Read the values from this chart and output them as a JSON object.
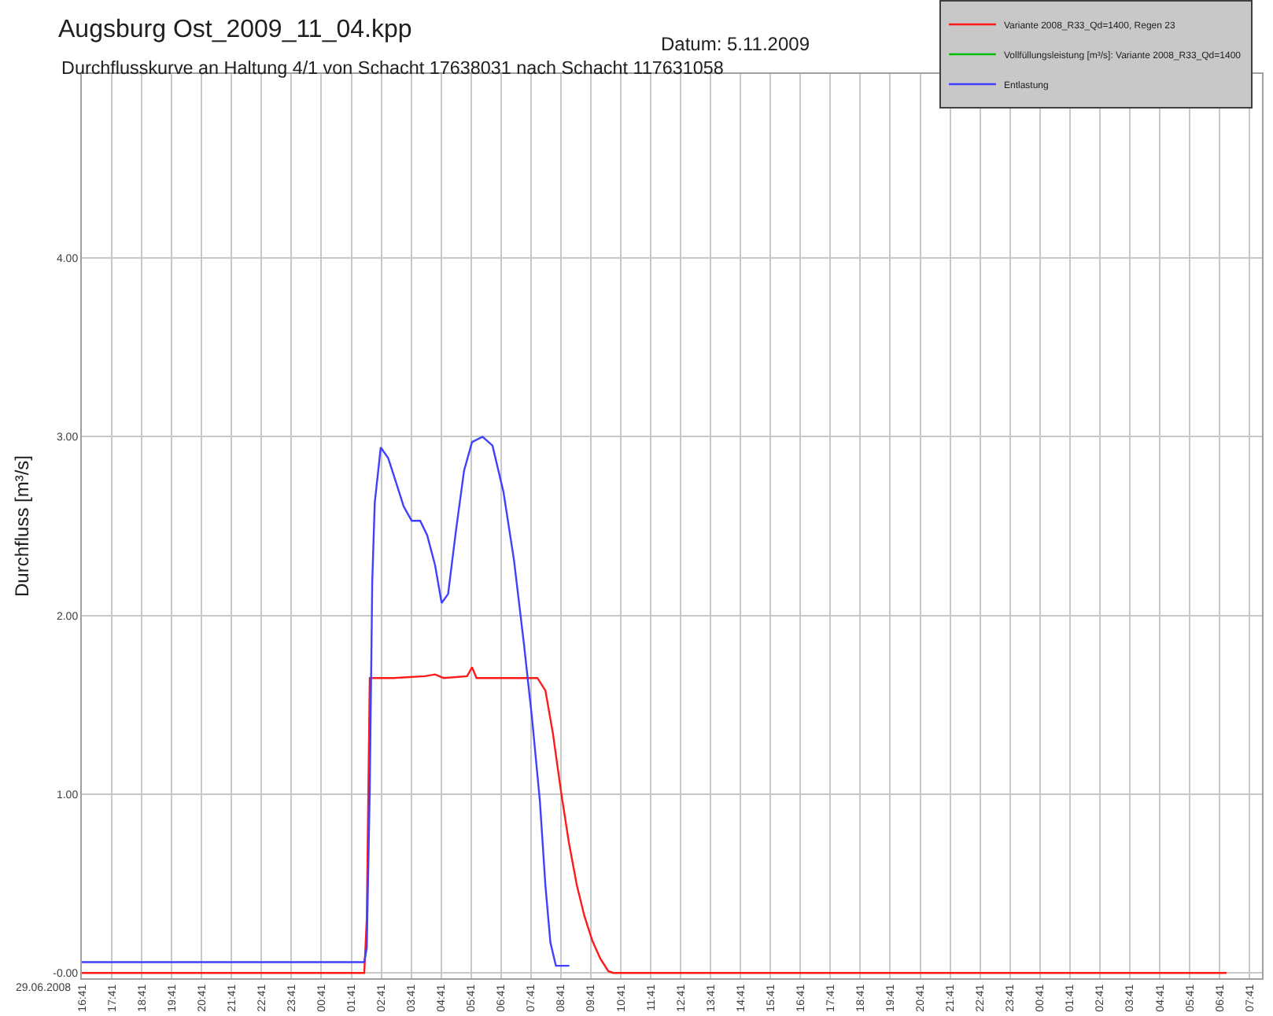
{
  "chart_data": {
    "type": "line",
    "title": "Augsburg Ost_2009_11_04.kpp",
    "subtitle": "Durchflusskurve an Haltung 4/1 von Schacht 17638031 nach Schacht 117631058",
    "ylabel": "Durchfluss [m³/s]",
    "annotations": [
      "Datum: 5.11.2009",
      "29.06.2008"
    ],
    "series": [
      {
        "name": "Variante 2008_R33_Qd=1400, Regen 23",
        "color": "#ff1a1a",
        "x": [
          "2008-06-29T16:41",
          "2008-06-30T02:07",
          "2008-06-30T02:12",
          "2008-06-30T02:18",
          "2008-06-30T03:05",
          "2008-06-30T04:08",
          "2008-06-30T04:29",
          "2008-06-30T04:46",
          "2008-06-30T05:33",
          "2008-06-30T05:43",
          "2008-06-30T05:52",
          "2008-06-30T06:46",
          "2008-06-30T07:54",
          "2008-06-30T08:10",
          "2008-06-30T08:25",
          "2008-06-30T08:41",
          "2008-06-30T08:57",
          "2008-06-30T09:13",
          "2008-06-30T09:28",
          "2008-06-30T09:44",
          "2008-06-30T10:00",
          "2008-06-30T10:16",
          "2008-06-30T10:26",
          "2008-07-01T06:55"
        ],
        "values": [
          0,
          0,
          0.3,
          1.65,
          1.65,
          1.66,
          1.67,
          1.65,
          1.66,
          1.71,
          1.65,
          1.65,
          1.65,
          1.58,
          1.34,
          1.02,
          0.73,
          0.49,
          0.32,
          0.18,
          0.08,
          0.01,
          0,
          0
        ]
      },
      {
        "name": "Vollfüllungsleistung [m³/s]: Variante 2008_R33_Qd=1400",
        "color": "#00c000",
        "values": [
          null
        ]
      },
      {
        "name": "Entlastung",
        "color": "#4040ff",
        "x": [
          "2008-06-29T16:41",
          "2008-06-30T02:07",
          "2008-06-30T02:12",
          "2008-06-30T02:18",
          "2008-06-30T02:23",
          "2008-06-30T02:28",
          "2008-06-30T02:40",
          "2008-06-30T02:55",
          "2008-06-30T03:10",
          "2008-06-30T03:26",
          "2008-06-30T03:42",
          "2008-06-30T03:59",
          "2008-06-30T04:13",
          "2008-06-30T04:29",
          "2008-06-30T04:42",
          "2008-06-30T04:55",
          "2008-06-30T05:11",
          "2008-06-30T05:27",
          "2008-06-30T05:43",
          "2008-06-30T06:04",
          "2008-06-30T06:24",
          "2008-06-30T06:46",
          "2008-06-30T07:07",
          "2008-06-30T07:27",
          "2008-06-30T07:43",
          "2008-06-30T07:59",
          "2008-06-30T08:10",
          "2008-06-30T08:20",
          "2008-06-30T08:31",
          "2008-06-30T08:58"
        ],
        "values": [
          0.06,
          0.06,
          0.14,
          1.02,
          2.19,
          2.63,
          2.94,
          2.88,
          2.75,
          2.61,
          2.53,
          2.53,
          2.45,
          2.28,
          2.07,
          2.12,
          2.48,
          2.81,
          2.97,
          3.0,
          2.95,
          2.69,
          2.31,
          1.84,
          1.43,
          0.96,
          0.49,
          0.17,
          0.04,
          0.04
        ]
      }
    ],
    "xlim": [
      "2008-06-29T16:41",
      "2008-07-01T08:06"
    ],
    "xticks": [
      {
        "value": "2008-06-29T16:41",
        "label": "16:41"
      },
      {
        "value": "2008-06-29T17:41",
        "label": "17:41"
      },
      {
        "value": "2008-06-29T18:41",
        "label": "18:41"
      },
      {
        "value": "2008-06-29T19:41",
        "label": "19:41"
      },
      {
        "value": "2008-06-29T20:41",
        "label": "20:41"
      },
      {
        "value": "2008-06-29T21:41",
        "label": "21:41"
      },
      {
        "value": "2008-06-29T22:41",
        "label": "22:41"
      },
      {
        "value": "2008-06-29T23:41",
        "label": "23:41"
      },
      {
        "value": "2008-06-30T00:41",
        "label": "00:41"
      },
      {
        "value": "2008-06-30T01:41",
        "label": "01:41"
      },
      {
        "value": "2008-06-30T02:41",
        "label": "02:41"
      },
      {
        "value": "2008-06-30T03:41",
        "label": "03:41"
      },
      {
        "value": "2008-06-30T04:41",
        "label": "04:41"
      },
      {
        "value": "2008-06-30T05:41",
        "label": "05:41"
      },
      {
        "value": "2008-06-30T06:41",
        "label": "06:41"
      },
      {
        "value": "2008-06-30T07:41",
        "label": "07:41"
      },
      {
        "value": "2008-06-30T08:41",
        "label": "08:41"
      },
      {
        "value": "2008-06-30T09:41",
        "label": "09:41"
      },
      {
        "value": "2008-06-30T10:41",
        "label": "10:41"
      },
      {
        "value": "2008-06-30T11:41",
        "label": "11:41"
      },
      {
        "value": "2008-06-30T12:41",
        "label": "12:41"
      },
      {
        "value": "2008-06-30T13:41",
        "label": "13:41"
      },
      {
        "value": "2008-06-30T14:41",
        "label": "14:41"
      },
      {
        "value": "2008-06-30T15:41",
        "label": "15:41"
      },
      {
        "value": "2008-06-30T16:41",
        "label": "16:41"
      },
      {
        "value": "2008-06-30T17:41",
        "label": "17:41"
      },
      {
        "value": "2008-06-30T18:41",
        "label": "18:41"
      },
      {
        "value": "2008-06-30T19:41",
        "label": "19:41"
      },
      {
        "value": "2008-06-30T20:41",
        "label": "20:41"
      },
      {
        "value": "2008-06-30T21:41",
        "label": "21:41"
      },
      {
        "value": "2008-06-30T22:41",
        "label": "22:41"
      },
      {
        "value": "2008-06-30T23:41",
        "label": "23:41"
      },
      {
        "value": "2008-07-01T00:41",
        "label": "00:41"
      },
      {
        "value": "2008-07-01T01:41",
        "label": "01:41"
      },
      {
        "value": "2008-07-01T02:41",
        "label": "02:41"
      },
      {
        "value": "2008-07-01T03:41",
        "label": "03:41"
      },
      {
        "value": "2008-07-01T04:41",
        "label": "04:41"
      },
      {
        "value": "2008-07-01T05:41",
        "label": "05:41"
      },
      {
        "value": "2008-07-01T06:41",
        "label": "06:41"
      },
      {
        "value": "2008-07-01T07:41",
        "label": "07:41"
      }
    ],
    "ylim": [
      -0.03,
      5.03
    ],
    "yticks": [
      {
        "value": 0,
        "label": "-0.00"
      },
      {
        "value": 1,
        "label": "1.00"
      },
      {
        "value": 2,
        "label": "2.00"
      },
      {
        "value": 3,
        "label": "3.00"
      },
      {
        "value": 4,
        "label": "4.00"
      }
    ],
    "grid": true,
    "legend": "top right",
    "line_style": "solid"
  }
}
